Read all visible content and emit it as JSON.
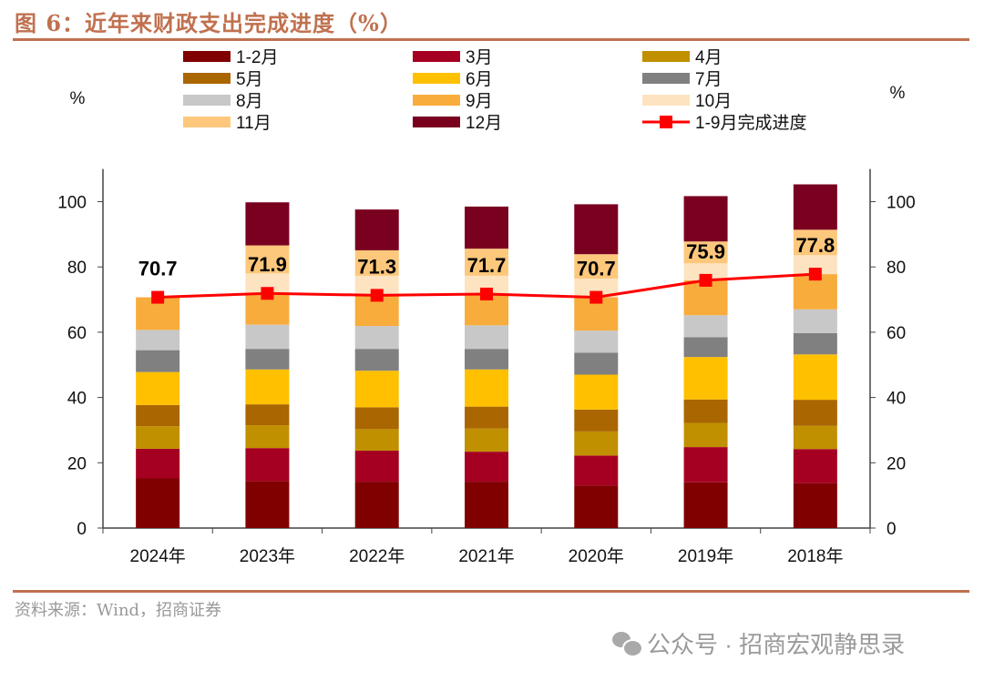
{
  "title": "图 6：近年来财政支出完成进度（%）",
  "source": "资料来源：Wind，招商证券",
  "watermark": "公众号 · 招商宏观静思录",
  "chart_data": {
    "type": "bar",
    "stacked": true,
    "title": "",
    "ylabel_left": "%",
    "ylabel_right": "%",
    "ylim": [
      0,
      110
    ],
    "yticks": [
      0,
      20,
      40,
      60,
      80,
      100
    ],
    "grid": false,
    "legend_position": "top",
    "categories": [
      "2024年",
      "2023年",
      "2022年",
      "2021年",
      "2020年",
      "2019年",
      "2018年"
    ],
    "series": [
      {
        "name": "1-2月",
        "color": "#800000",
        "values": [
          15.2,
          14.4,
          14.2,
          14.2,
          13.0,
          14.0,
          13.7
        ]
      },
      {
        "name": "3月",
        "color": "#a50021",
        "values": [
          9.1,
          10.1,
          9.5,
          9.2,
          9.2,
          10.8,
          10.5
        ]
      },
      {
        "name": "4月",
        "color": "#c09000",
        "values": [
          6.9,
          7.0,
          6.6,
          7.1,
          7.4,
          7.4,
          7.1
        ]
      },
      {
        "name": "5月",
        "color": "#aa6600",
        "values": [
          6.5,
          6.4,
          6.7,
          6.7,
          6.7,
          7.2,
          8.0
        ]
      },
      {
        "name": "6月",
        "color": "#ffc000",
        "values": [
          10.1,
          10.7,
          11.2,
          11.4,
          10.7,
          13.0,
          13.9
        ]
      },
      {
        "name": "7月",
        "color": "#808080",
        "values": [
          6.7,
          6.3,
          6.7,
          6.3,
          6.7,
          6.1,
          6.5
        ]
      },
      {
        "name": "8月",
        "color": "#c8c8c8",
        "values": [
          6.2,
          7.4,
          7.0,
          7.2,
          6.8,
          6.7,
          7.3
        ]
      },
      {
        "name": "9月",
        "color": "#f8ac3c",
        "values": [
          10.0,
          9.6,
          9.4,
          9.6,
          10.2,
          10.7,
          10.8
        ]
      },
      {
        "name": "10月",
        "color": "#fde3c0",
        "values": [
          null,
          6.1,
          6.0,
          5.6,
          5.7,
          5.2,
          5.8
        ]
      },
      {
        "name": "11月",
        "color": "#fdc87c",
        "values": [
          null,
          8.6,
          7.8,
          8.3,
          7.5,
          6.7,
          7.8
        ]
      },
      {
        "name": "12月",
        "color": "#7a0020",
        "values": [
          null,
          13.2,
          12.5,
          12.9,
          15.3,
          13.9,
          13.9
        ]
      }
    ],
    "line": {
      "name": "1-9月完成进度",
      "color": "#ff0000",
      "axis": "right",
      "values": [
        70.7,
        71.9,
        71.3,
        71.7,
        70.7,
        75.9,
        77.8
      ],
      "labels": [
        "70.7",
        "71.9",
        "71.3",
        "71.7",
        "70.7",
        "75.9",
        "77.8"
      ]
    }
  }
}
